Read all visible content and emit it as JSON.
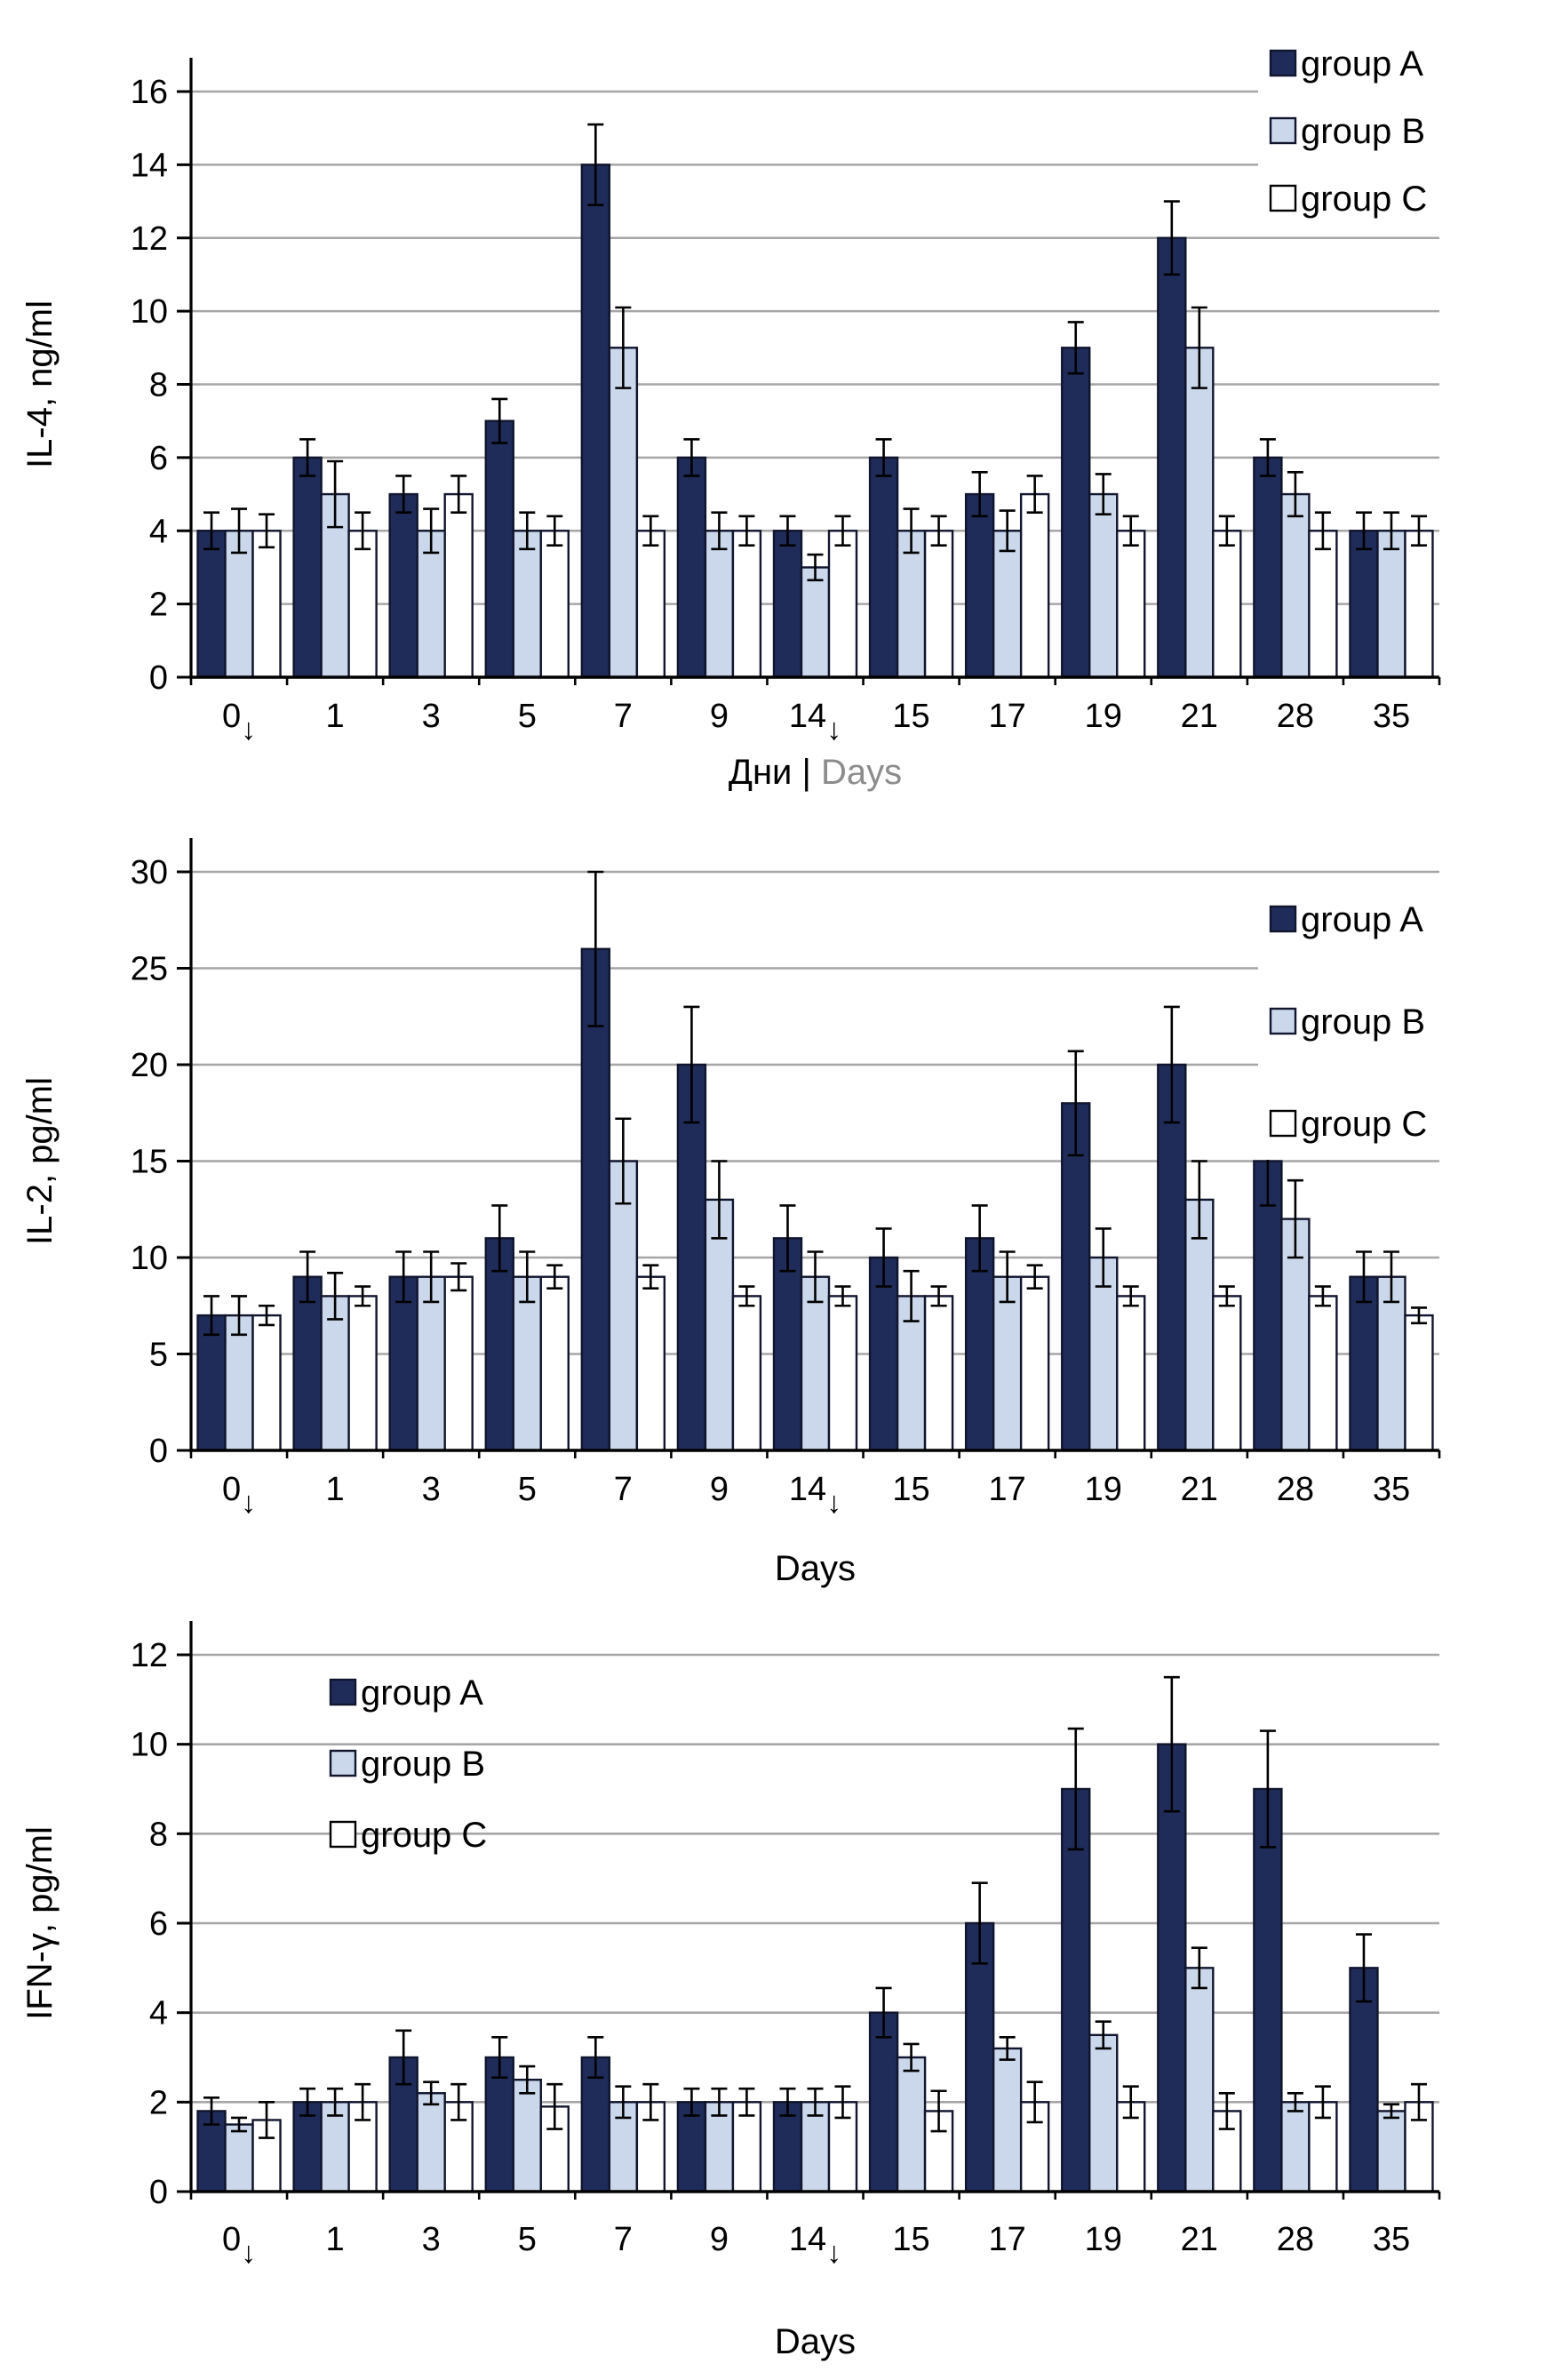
{
  "page": {
    "background": "#FFFFFF"
  },
  "style": {
    "series_colors": {
      "group A": "#1F2C5A",
      "group B": "#CBD8EC",
      "group C": "#FFFFFF"
    },
    "bar_stroke": "#11152E",
    "grid_color": "#A6A6A6",
    "axis_color": "#000000",
    "error_bar_color": "#000000",
    "tick_label_color": "#000000",
    "muted_label_color": "#8C8C8C"
  },
  "legend": {
    "items": [
      "group A",
      "group B",
      "group C"
    ]
  },
  "chart_data": [
    {
      "id": "il4",
      "type": "bar",
      "title": "",
      "ylabel": "IL-4, ng/ml",
      "xlabel_parts": [
        {
          "text": "Дни | ",
          "muted": false
        },
        {
          "text": "Days",
          "muted": true
        }
      ],
      "ylim": [
        0,
        16
      ],
      "ytick_step": 2,
      "grid": true,
      "legend_position": "top-right",
      "categories": [
        "0↓",
        "1",
        "3",
        "5",
        "7",
        "9",
        "14↓",
        "15",
        "17",
        "19",
        "21",
        "28",
        "35"
      ],
      "series": [
        {
          "name": "group A",
          "values": [
            4,
            6,
            5,
            7,
            14,
            6,
            4,
            6,
            5,
            9,
            12,
            6,
            4
          ],
          "errors": [
            0.5,
            0.5,
            0.5,
            0.6,
            1.1,
            0.5,
            0.4,
            0.5,
            0.6,
            0.7,
            1.0,
            0.5,
            0.5
          ]
        },
        {
          "name": "group B",
          "values": [
            4,
            5,
            4,
            4,
            9,
            4,
            3,
            4,
            4,
            5,
            9,
            5,
            4
          ],
          "errors": [
            0.6,
            0.9,
            0.6,
            0.5,
            1.1,
            0.5,
            0.35,
            0.6,
            0.55,
            0.55,
            1.1,
            0.6,
            0.5
          ]
        },
        {
          "name": "group C",
          "values": [
            4,
            4,
            5,
            4,
            4,
            4,
            4,
            4,
            5,
            4,
            4,
            4,
            4
          ],
          "errors": [
            0.45,
            0.5,
            0.5,
            0.4,
            0.4,
            0.4,
            0.4,
            0.4,
            0.5,
            0.4,
            0.4,
            0.5,
            0.4
          ]
        }
      ]
    },
    {
      "id": "il2",
      "type": "bar",
      "title": "",
      "ylabel": "IL-2, pg/ml",
      "xlabel_parts": [
        {
          "text": "Days",
          "muted": false
        }
      ],
      "ylim": [
        0,
        30
      ],
      "ytick_step": 5,
      "grid": true,
      "legend_position": "top-right",
      "categories": [
        "0↓",
        "1",
        "3",
        "5",
        "7",
        "9",
        "14↓",
        "15",
        "17",
        "19",
        "21",
        "28",
        "35"
      ],
      "series": [
        {
          "name": "group A",
          "values": [
            7,
            9,
            9,
            11,
            26,
            20,
            11,
            10,
            11,
            18,
            20,
            15,
            9
          ],
          "errors": [
            1.0,
            1.3,
            1.3,
            1.7,
            4.0,
            3.0,
            1.7,
            1.5,
            1.7,
            2.7,
            3.0,
            2.3,
            1.3
          ]
        },
        {
          "name": "group B",
          "values": [
            7,
            8,
            9,
            9,
            15,
            13,
            9,
            8,
            9,
            10,
            13,
            12,
            9
          ],
          "errors": [
            1.0,
            1.2,
            1.3,
            1.3,
            2.2,
            2.0,
            1.3,
            1.3,
            1.3,
            1.5,
            2.0,
            2.0,
            1.3
          ]
        },
        {
          "name": "group C",
          "values": [
            7,
            8,
            9,
            9,
            9,
            8,
            8,
            8,
            9,
            8,
            8,
            8,
            7
          ],
          "errors": [
            0.5,
            0.5,
            0.7,
            0.6,
            0.6,
            0.5,
            0.5,
            0.5,
            0.6,
            0.5,
            0.5,
            0.5,
            0.4
          ]
        }
      ]
    },
    {
      "id": "ifng",
      "type": "bar",
      "title": "",
      "ylabel": "IFN-γ, pg/ml",
      "xlabel_parts": [
        {
          "text": "Days",
          "muted": false
        }
      ],
      "ylim": [
        0,
        12
      ],
      "ytick_step": 2,
      "grid": true,
      "legend_position": "top-left",
      "categories": [
        "0↓",
        "1",
        "3",
        "5",
        "7",
        "9",
        "14↓",
        "15",
        "17",
        "19",
        "21",
        "28",
        "35"
      ],
      "series": [
        {
          "name": "group A",
          "values": [
            1.8,
            2,
            3,
            3,
            3,
            2,
            2,
            4,
            6,
            9,
            10,
            9,
            5
          ],
          "errors": [
            0.3,
            0.3,
            0.6,
            0.45,
            0.45,
            0.3,
            0.3,
            0.55,
            0.9,
            1.35,
            1.5,
            1.3,
            0.75
          ]
        },
        {
          "name": "group B",
          "values": [
            1.5,
            2,
            2.2,
            2.5,
            2,
            2,
            2,
            3,
            3.2,
            3.5,
            5,
            2,
            1.8
          ],
          "errors": [
            0.15,
            0.3,
            0.25,
            0.3,
            0.35,
            0.3,
            0.3,
            0.3,
            0.25,
            0.3,
            0.45,
            0.2,
            0.15
          ]
        },
        {
          "name": "group C",
          "values": [
            1.6,
            2,
            2,
            1.9,
            2,
            2,
            2,
            1.8,
            2,
            2,
            1.8,
            2,
            2
          ],
          "errors": [
            0.4,
            0.4,
            0.4,
            0.5,
            0.4,
            0.3,
            0.35,
            0.45,
            0.45,
            0.35,
            0.4,
            0.35,
            0.4
          ]
        }
      ]
    }
  ]
}
